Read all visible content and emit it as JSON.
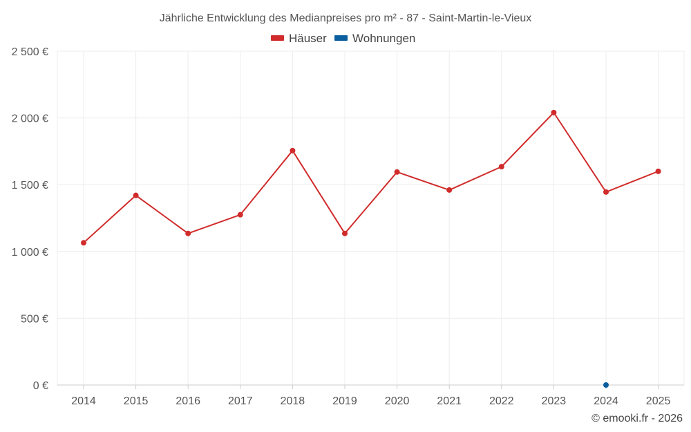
{
  "chart_data": {
    "type": "line",
    "title": "Jährliche Entwicklung des Medianpreises pro m² - 87 - Saint-Martin-le-Vieux",
    "x": [
      "2014",
      "2015",
      "2016",
      "2017",
      "2018",
      "2019",
      "2020",
      "2021",
      "2022",
      "2023",
      "2024",
      "2025"
    ],
    "series": [
      {
        "name": "Häuser",
        "color": "#d12b2b",
        "values": [
          1065,
          1420,
          1135,
          1275,
          1755,
          1135,
          1595,
          1460,
          1635,
          2040,
          1445,
          1600
        ]
      },
      {
        "name": "Wohnungen",
        "color": "#0a5f9e",
        "values": [
          null,
          null,
          null,
          null,
          null,
          null,
          null,
          null,
          null,
          null,
          0,
          null
        ]
      }
    ],
    "y_ticks": [
      "0 €",
      "500 €",
      "1 000 €",
      "1 500 €",
      "2 000 €",
      "2 500 €"
    ],
    "ylim": [
      0,
      2500
    ],
    "grid": true,
    "legend_position": "top-center"
  },
  "credit": "© emooki.fr - 2026"
}
